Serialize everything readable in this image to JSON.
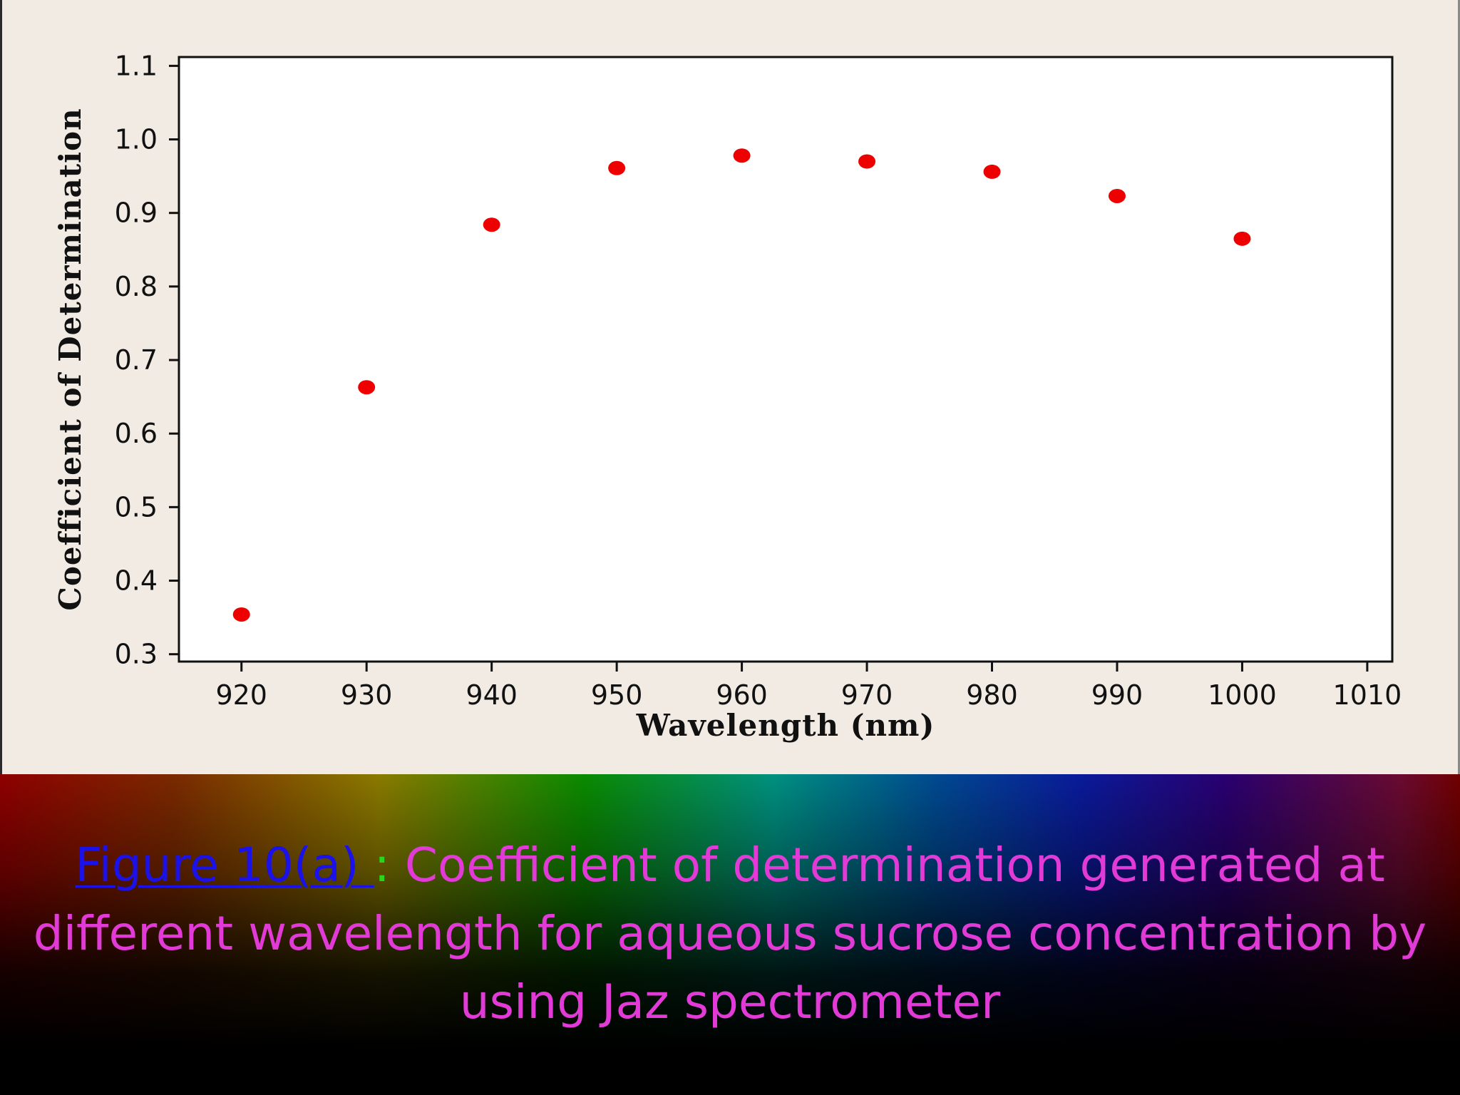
{
  "chart_data": {
    "type": "scatter",
    "xlabel": "Wavelength (nm)",
    "ylabel": "Coefficient of Determination",
    "xlim": [
      915,
      1012
    ],
    "ylim": [
      0.29,
      1.112
    ],
    "xticks": [
      "920",
      "930",
      "940",
      "950",
      "960",
      "970",
      "980",
      "990",
      "1000",
      "1010"
    ],
    "yticks": [
      "0.3",
      "0.4",
      "0.5",
      "0.6",
      "0.7",
      "0.8",
      "0.9",
      "1.0",
      "1.1"
    ],
    "series": [
      {
        "x": [
          920,
          930,
          940,
          950,
          960,
          970,
          980,
          990,
          1000
        ],
        "y": [
          0.354,
          0.663,
          0.884,
          0.961,
          0.978,
          0.97,
          0.956,
          0.923,
          0.865
        ]
      }
    ],
    "marker_color": "#ee0000",
    "grid": false
  },
  "caption": {
    "figure_ref": "Figure 10(a) ",
    "separator": ":",
    "text": " Coefficient of determination generated at different wavelength for aqueous sucrose concentration by using Jaz spectrometer"
  },
  "colors": {
    "panel_background": "#f1ebe4",
    "plot_background": "#ffffff",
    "caption_text": "#e23ad6",
    "caption_link": "#1a12e8",
    "caption_separator": "#28d61a"
  }
}
